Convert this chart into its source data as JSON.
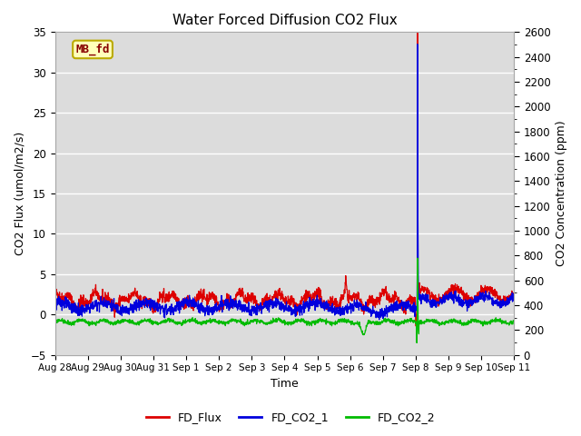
{
  "title": "Water Forced Diffusion CO2 Flux",
  "xlabel": "Time",
  "ylabel_left": "CO2 Flux (umol/m2/s)",
  "ylabel_right": "CO2 Concentration (ppm)",
  "ylim_left": [
    -5,
    35
  ],
  "ylim_right": [
    0,
    2600
  ],
  "background_color": "#dcdcdc",
  "fig_background": "#ffffff",
  "legend_labels": [
    "FD_Flux",
    "FD_CO2_1",
    "FD_CO2_2"
  ],
  "legend_colors": [
    "#dd0000",
    "#0000dd",
    "#00bb00"
  ],
  "text_box_label": "MB_fd",
  "text_box_facecolor": "#ffffbb",
  "text_box_edgecolor": "#bbaa00",
  "text_box_textcolor": "#880000",
  "xtick_labels": [
    "Aug 28",
    "Aug 29",
    "Aug 30",
    "Aug 31",
    "Sep 1",
    "Sep 2",
    "Sep 3",
    "Sep 4",
    "Sep 5",
    "Sep 6",
    "Sep 7",
    "Sep 8",
    "Sep 9",
    "Sep 10",
    "Sep 11"
  ],
  "yticks_left": [
    -5,
    0,
    5,
    10,
    15,
    20,
    25,
    30,
    35
  ],
  "yticks_right": [
    0,
    200,
    400,
    600,
    800,
    1000,
    1200,
    1400,
    1600,
    1800,
    2000,
    2200,
    2400,
    2600
  ],
  "n_days": 14,
  "seed": 42
}
